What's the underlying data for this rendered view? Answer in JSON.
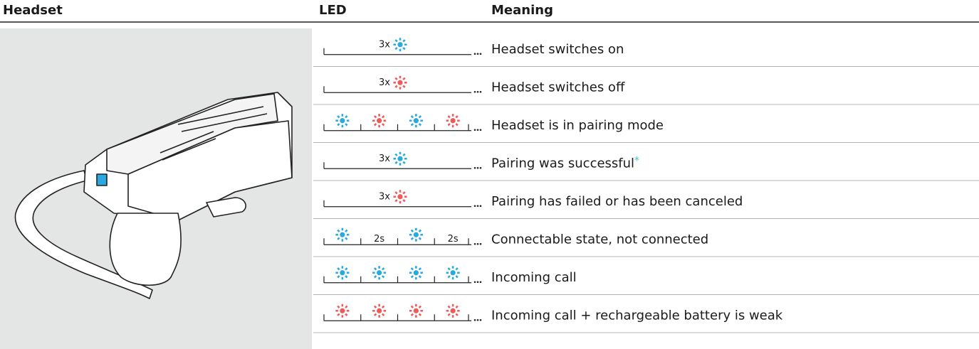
{
  "header": {
    "headset": "Headset",
    "led": "LED",
    "meaning": "Meaning"
  },
  "rows": [
    {
      "label": "3x",
      "colors": [
        "#2aa8e0"
      ],
      "meaning": "Headset switches on"
    },
    {
      "label": "3x",
      "colors": [
        "#ef5a5a"
      ],
      "meaning": "Headset switches off"
    },
    {
      "steps": [
        {
          "color": "#2aa8e0"
        },
        {
          "color": "#ef5a5a"
        },
        {
          "color": "#2aa8e0"
        },
        {
          "color": "#ef5a5a"
        }
      ],
      "meaning": "Headset is in pairing mode"
    },
    {
      "label": "3x",
      "colors": [
        "#2aa8e0"
      ],
      "meaning": "Pairing was successful",
      "note": "*",
      "note_color": "#3cc8c8"
    },
    {
      "label": "3x",
      "colors": [
        "#ef5a5a"
      ],
      "meaning": "Pairing has failed or has been canceled"
    },
    {
      "steps": [
        {
          "color": "#2aa8e0"
        },
        {
          "label": "2s"
        },
        {
          "color": "#2aa8e0"
        },
        {
          "label": "2s"
        }
      ],
      "meaning": "Connectable state, not connected"
    },
    {
      "steps": [
        {
          "color": "#2aa8e0"
        },
        {
          "color": "#2aa8e0"
        },
        {
          "color": "#2aa8e0"
        },
        {
          "color": "#2aa8e0"
        }
      ],
      "meaning": "Incoming call"
    },
    {
      "steps": [
        {
          "color": "#ef5a5a"
        },
        {
          "color": "#ef5a5a"
        },
        {
          "color": "#ef5a5a"
        },
        {
          "color": "#ef5a5a"
        }
      ],
      "meaning": "Incoming call + rechargeable battery is weak"
    }
  ]
}
